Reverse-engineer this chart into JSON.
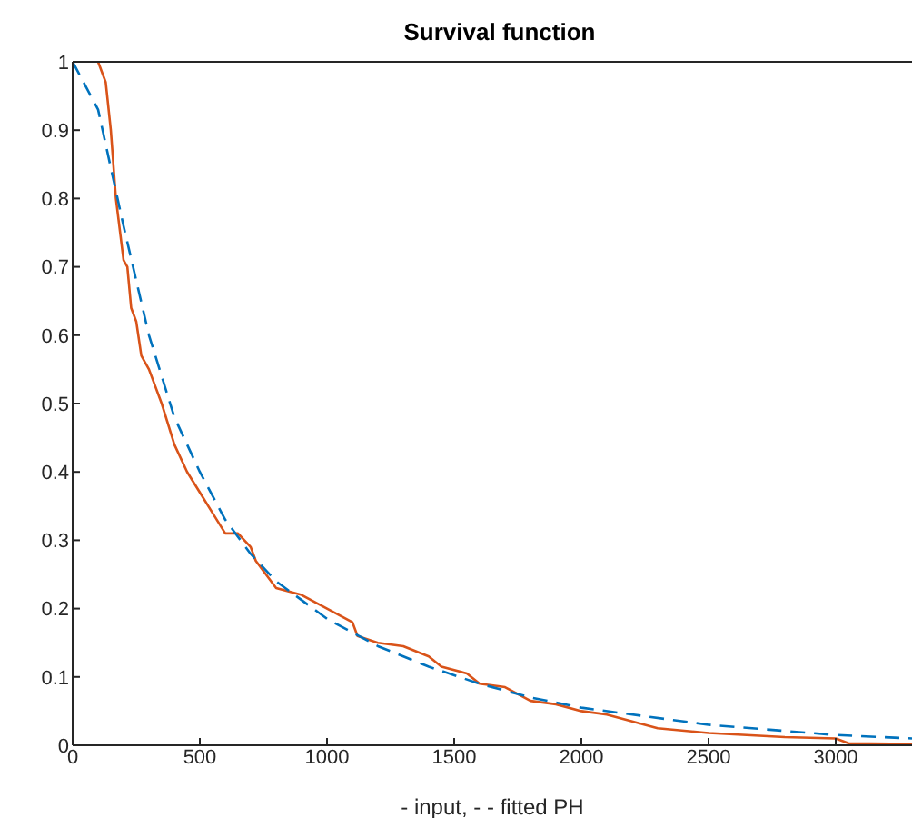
{
  "chart_data": {
    "type": "line",
    "title": "Survival function",
    "xlabel": "- input, - - fitted PH",
    "xlim": [
      0,
      3300
    ],
    "xticks": [
      0,
      500,
      1000,
      1500,
      2000,
      2500,
      3000
    ],
    "ylim": [
      0,
      1
    ],
    "yticks": [
      0,
      0.1,
      0.2,
      0.3,
      0.4,
      0.5,
      0.6,
      0.7,
      0.8,
      0.9,
      1
    ],
    "grid": false,
    "series": [
      {
        "color": "#d95319",
        "line_style": "solid",
        "x": [
          100,
          130,
          150,
          170,
          200,
          215,
          230,
          250,
          270,
          300,
          350,
          400,
          450,
          500,
          550,
          600,
          650,
          700,
          720,
          800,
          900,
          1000,
          1100,
          1120,
          1200,
          1300,
          1400,
          1450,
          1550,
          1600,
          1700,
          1800,
          1900,
          2000,
          2100,
          2200,
          2300,
          2500,
          2800,
          3000,
          3050,
          3300
        ],
        "values": [
          1,
          0.97,
          0.9,
          0.8,
          0.71,
          0.7,
          0.64,
          0.62,
          0.57,
          0.55,
          0.5,
          0.44,
          0.4,
          0.37,
          0.34,
          0.31,
          0.31,
          0.29,
          0.27,
          0.23,
          0.22,
          0.2,
          0.18,
          0.16,
          0.15,
          0.145,
          0.13,
          0.115,
          0.105,
          0.09,
          0.085,
          0.065,
          0.06,
          0.05,
          0.045,
          0.035,
          0.025,
          0.018,
          0.012,
          0.01,
          0.003,
          0.002
        ]
      },
      {
        "color": "#0072bd",
        "line_style": "dashed",
        "x": [
          0,
          100,
          200,
          300,
          400,
          500,
          600,
          700,
          800,
          1000,
          1200,
          1400,
          1600,
          1800,
          2000,
          2500,
          3000,
          3300
        ],
        "values": [
          1,
          0.93,
          0.76,
          0.6,
          0.48,
          0.4,
          0.33,
          0.28,
          0.24,
          0.185,
          0.145,
          0.115,
          0.09,
          0.07,
          0.055,
          0.03,
          0.015,
          0.01
        ]
      }
    ]
  }
}
